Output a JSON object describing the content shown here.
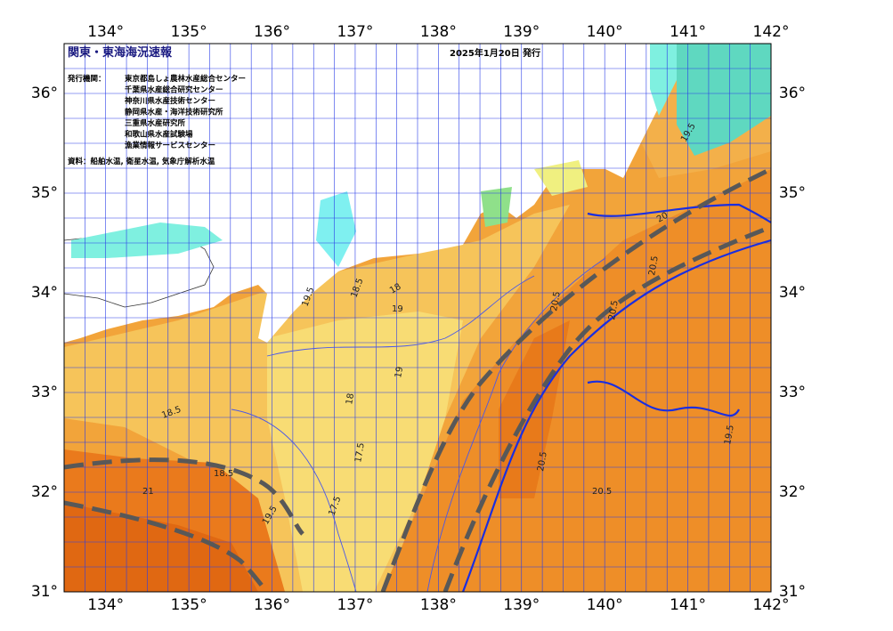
{
  "map": {
    "title": "関東・東海海況速報",
    "date": "2025年1月20日 発行",
    "issuers_label": "発行機関：",
    "issuers": [
      "東京都島しょ農林水産総合センター",
      "千葉県水産総合研究センター",
      "神奈川県水産技術センター",
      "静岡県水産・海洋技術研究所",
      "三重県水産研究所",
      "和歌山県水産試験場",
      "漁業情報サービスセンター"
    ],
    "source": "資料：船舶水温, 衛星水温, 気象庁解析水温",
    "xlim": [
      133.5,
      142
    ],
    "ylim": [
      31,
      36.5
    ],
    "xticks": [
      {
        "value": 134,
        "label": "134°"
      },
      {
        "value": 135,
        "label": "135°"
      },
      {
        "value": 136,
        "label": "136°"
      },
      {
        "value": 137,
        "label": "137°"
      },
      {
        "value": 138,
        "label": "138°"
      },
      {
        "value": 139,
        "label": "139°"
      },
      {
        "value": 140,
        "label": "140°"
      },
      {
        "value": 141,
        "label": "141°"
      },
      {
        "value": 142,
        "label": "142°"
      }
    ],
    "yticks": [
      {
        "value": 31,
        "label": "31°"
      },
      {
        "value": 32,
        "label": "32°"
      },
      {
        "value": 33,
        "label": "33°"
      },
      {
        "value": 34,
        "label": "34°"
      },
      {
        "value": 35,
        "label": "35°"
      },
      {
        "value": 36,
        "label": "36°"
      }
    ],
    "contour_labels": [
      19.5,
      18.5,
      19,
      18,
      17.5,
      18.5,
      19,
      20.5,
      20.5,
      20.5,
      20.5,
      20.5,
      19.5,
      21,
      18.5,
      19.5,
      18,
      17.5,
      20,
      19.5
    ]
  }
}
